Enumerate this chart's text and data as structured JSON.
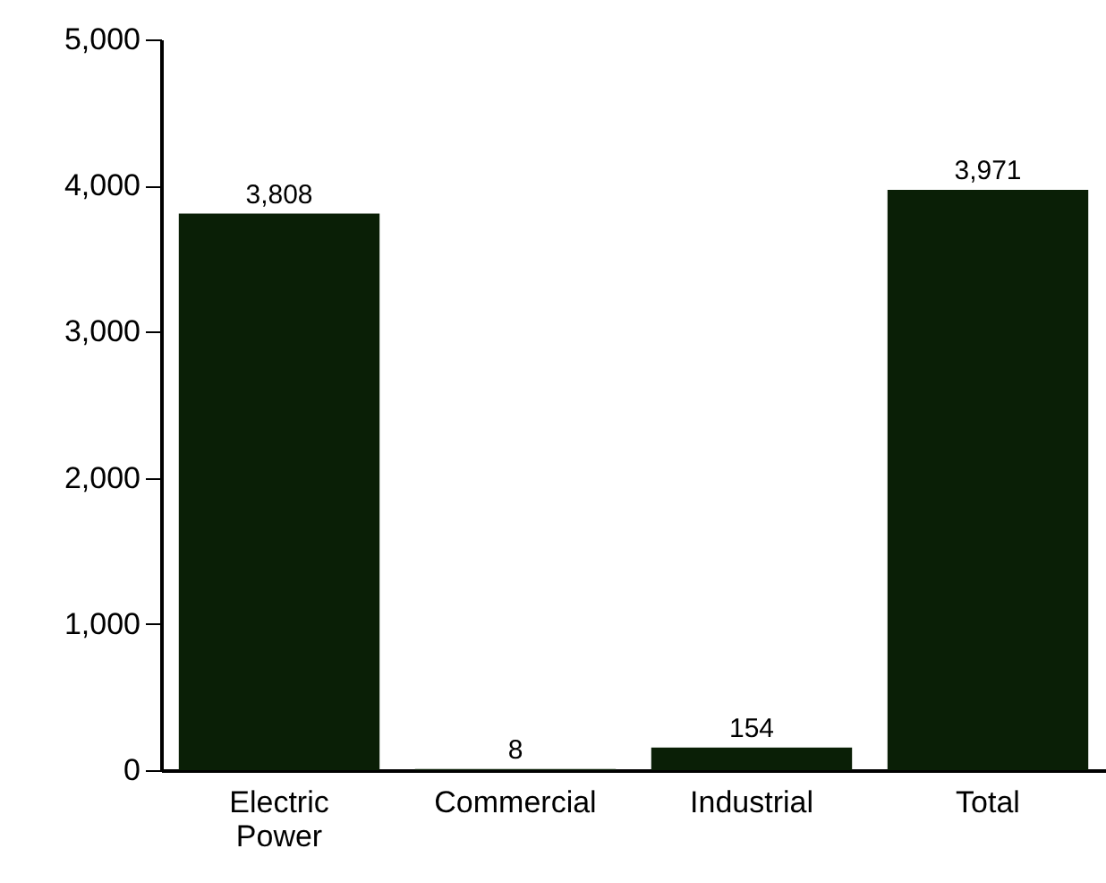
{
  "chart_data": {
    "type": "bar",
    "categories": [
      "Electric Power",
      "Commercial",
      "Industrial",
      "Total"
    ],
    "values": [
      3808,
      8,
      154,
      3971
    ],
    "color": "#0a1f06",
    "ylim": [
      0,
      5000
    ],
    "yticks": [
      {
        "value": 0,
        "label": "0"
      },
      {
        "value": 1000,
        "label": "1,000"
      },
      {
        "value": 2000,
        "label": "2,000"
      },
      {
        "value": 3000,
        "label": "3,000"
      },
      {
        "value": 4000,
        "label": "4,000"
      },
      {
        "value": 5000,
        "label": "5,000"
      }
    ],
    "value_labels": [
      "3,808",
      "8",
      "154",
      "3,971"
    ]
  }
}
